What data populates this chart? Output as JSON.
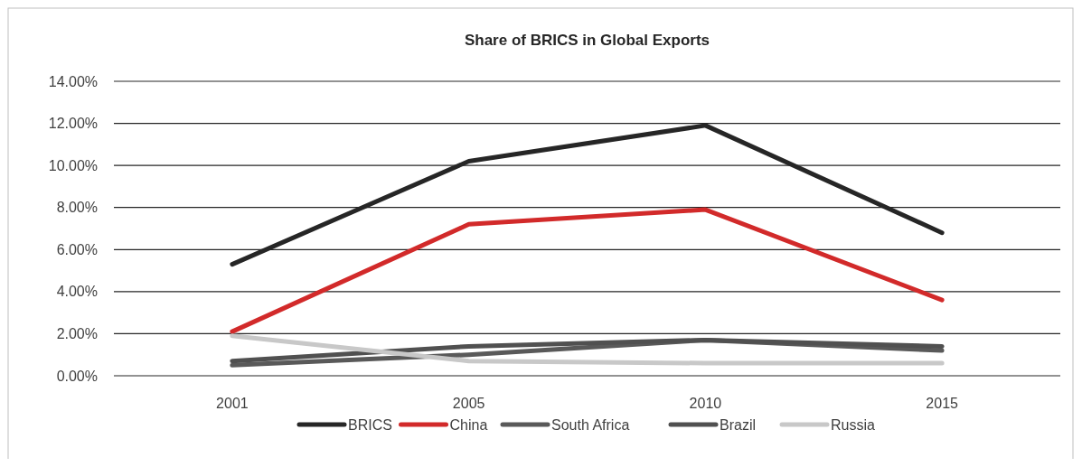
{
  "chart_data": {
    "type": "line",
    "title": "Share of BRICS in Global Exports",
    "categories": [
      "2001",
      "2005",
      "2010",
      "2015"
    ],
    "series": [
      {
        "name": "BRICS",
        "color": "#262626",
        "values": [
          5.3,
          10.2,
          11.9,
          6.8
        ]
      },
      {
        "name": "China",
        "color": "#d22a2a",
        "values": [
          2.1,
          7.2,
          7.9,
          3.6
        ]
      },
      {
        "name": "South Africa",
        "color": "#595959",
        "values": [
          0.5,
          1.0,
          1.7,
          1.2
        ]
      },
      {
        "name": "Brazil",
        "color": "#505050",
        "values": [
          0.7,
          1.4,
          1.7,
          1.4
        ]
      },
      {
        "name": "Russia",
        "color": "#c8c8c8",
        "values": [
          1.9,
          0.7,
          0.6,
          0.6
        ]
      }
    ],
    "ylim": [
      0,
      14
    ],
    "yticks": [
      {
        "value": 0,
        "label": "0.00%"
      },
      {
        "value": 2,
        "label": "2.00%"
      },
      {
        "value": 4,
        "label": "4.00%"
      },
      {
        "value": 6,
        "label": "6.00%"
      },
      {
        "value": 8,
        "label": "8.00%"
      },
      {
        "value": 10,
        "label": "10.00%"
      },
      {
        "value": 12,
        "label": "12.00%"
      },
      {
        "value": 14,
        "label": "14.00%"
      }
    ],
    "grid": "y",
    "legend": "bottom",
    "marker": "none",
    "line_style": "solid"
  }
}
